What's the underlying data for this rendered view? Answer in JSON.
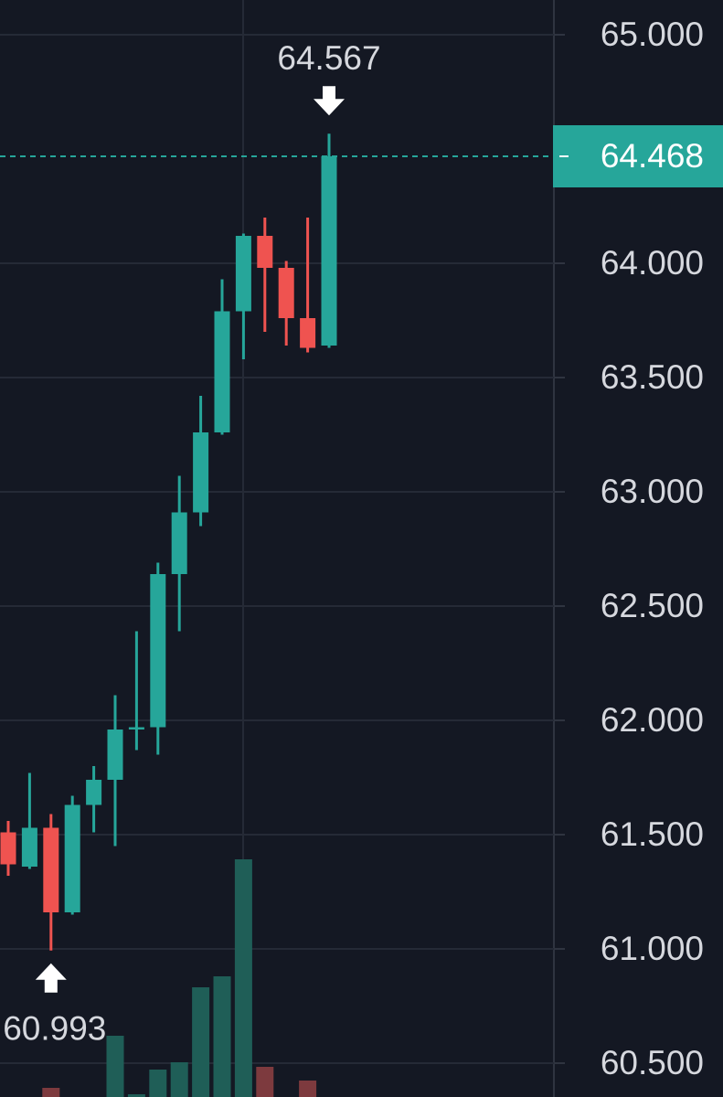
{
  "chart_data": {
    "type": "candlestick",
    "ylim": [
      60.352,
      65.152
    ],
    "yticks": [
      {
        "value": 60.5,
        "label": "60.500"
      },
      {
        "value": 61,
        "label": "61.000"
      },
      {
        "value": 61.5,
        "label": "61.500"
      },
      {
        "value": 62,
        "label": "62.000"
      },
      {
        "value": 62.5,
        "label": "62.500"
      },
      {
        "value": 63,
        "label": "63.000"
      },
      {
        "value": 63.5,
        "label": "63.500"
      },
      {
        "value": 64,
        "label": "64.000"
      },
      {
        "value": 65,
        "label": "65.000"
      }
    ],
    "grid": true,
    "up_color": "#26a69a",
    "down_color": "#ef5350",
    "open": [
      61.51,
      61.36,
      61.53,
      61.16,
      61.63,
      61.74,
      61.96,
      61.97,
      62.64,
      62.91,
      63.26,
      63.79,
      64.12,
      63.98,
      63.76,
      63.64
    ],
    "high": [
      61.56,
      61.77,
      61.59,
      61.67,
      61.8,
      62.11,
      62.39,
      62.69,
      63.07,
      63.42,
      63.93,
      64.13,
      64.2,
      64.01,
      64.2,
      64.567
    ],
    "low": [
      61.32,
      61.35,
      60.993,
      61.15,
      61.51,
      61.45,
      61.87,
      61.85,
      62.39,
      62.85,
      63.25,
      63.58,
      63.7,
      63.64,
      63.61,
      63.63
    ],
    "close": [
      61.37,
      61.53,
      61.16,
      61.63,
      61.74,
      61.96,
      61.97,
      62.64,
      62.91,
      63.26,
      63.79,
      64.12,
      63.98,
      63.76,
      63.63,
      64.468
    ],
    "volume": [
      null,
      null,
      10,
      null,
      null,
      67,
      3,
      30,
      38,
      120,
      132,
      260,
      33,
      null,
      18,
      null
    ],
    "volume_lim": [
      0,
      1200
    ],
    "volume_up_color": "#1f5e57",
    "volume_down_color": "#7d3a3e"
  }
}
